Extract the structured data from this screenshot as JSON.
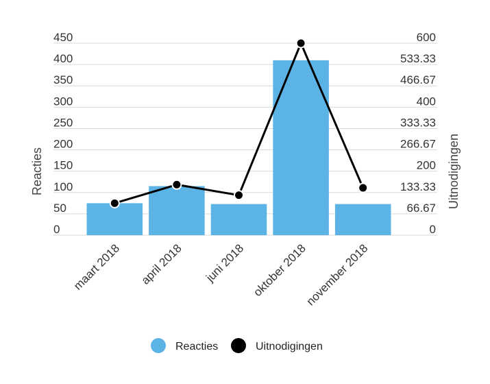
{
  "chart_data": {
    "type": "bar",
    "categories": [
      "maart 2018",
      "april 2018",
      "juni 2018",
      "oktober 2018",
      "november 2018"
    ],
    "series": [
      {
        "name": "Reacties",
        "kind": "bar",
        "axis": "left",
        "color": "#5cb3e5",
        "values": [
          75,
          115,
          73,
          410,
          73
        ]
      },
      {
        "name": "Uitnodigingen",
        "kind": "line",
        "axis": "right",
        "color": "#000000",
        "values": [
          100,
          158,
          125,
          600,
          148
        ]
      }
    ],
    "ylabel": "Reacties",
    "y2label": "Uitnodigingen",
    "ylim": [
      0,
      450
    ],
    "y2lim": [
      0,
      600
    ],
    "yticks": [
      "0",
      "50",
      "100",
      "150",
      "200",
      "250",
      "300",
      "350",
      "400",
      "450"
    ],
    "y2ticks": [
      "0",
      "66.67",
      "133.33",
      "200",
      "266.67",
      "333.33",
      "400",
      "466.67",
      "533.33",
      "600"
    ],
    "grid": true,
    "legend_position": "bottom"
  }
}
